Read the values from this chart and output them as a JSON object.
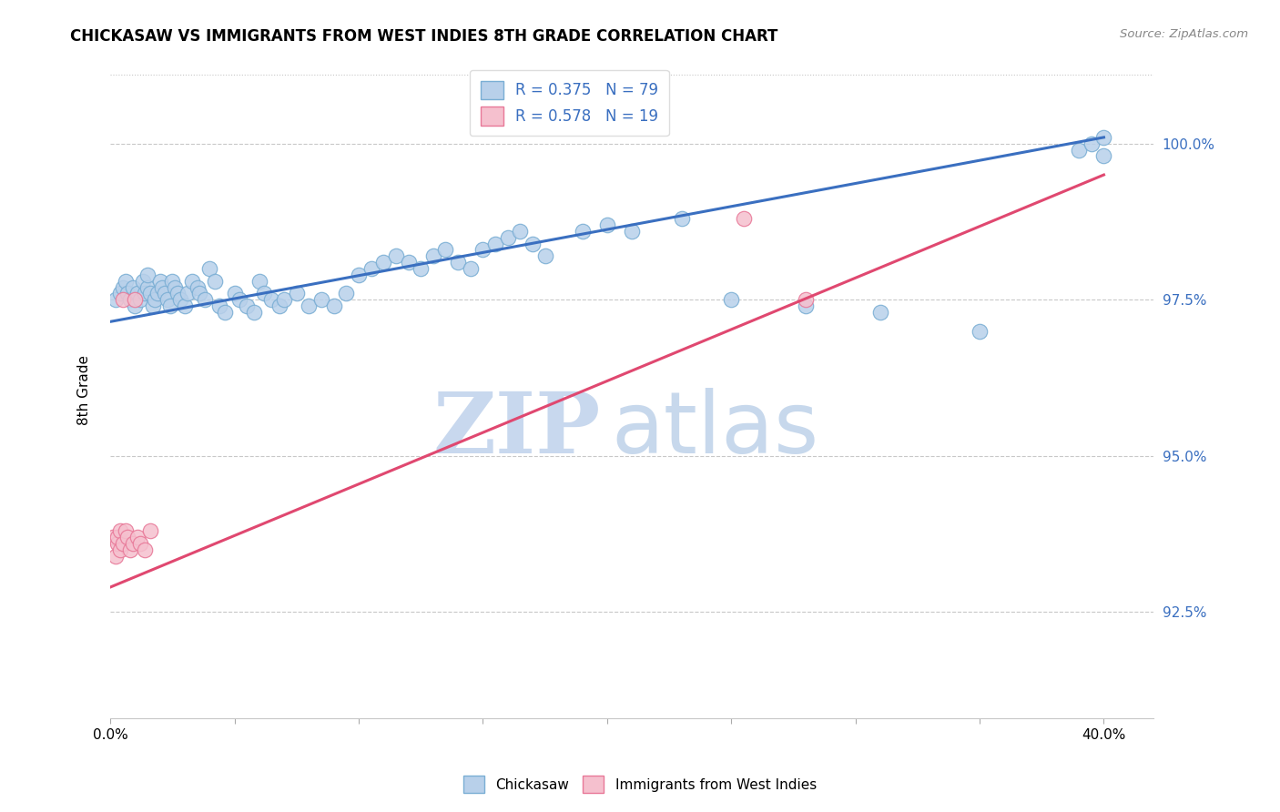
{
  "title": "CHICKASAW VS IMMIGRANTS FROM WEST INDIES 8TH GRADE CORRELATION CHART",
  "source": "Source: ZipAtlas.com",
  "ylabel": "8th Grade",
  "xlim": [
    0.0,
    0.42
  ],
  "ylim": [
    0.908,
    1.013
  ],
  "y_ticks": [
    0.925,
    0.95,
    0.975,
    1.0
  ],
  "y_tick_labels": [
    "92.5%",
    "95.0%",
    "97.5%",
    "100.0%"
  ],
  "x_ticks": [
    0.0,
    0.05,
    0.1,
    0.15,
    0.2,
    0.25,
    0.3,
    0.35,
    0.4
  ],
  "x_tick_labels": [
    "0.0%",
    "",
    "",
    "",
    "",
    "",
    "",
    "",
    "40.0%"
  ],
  "blue_R": 0.375,
  "blue_N": 79,
  "pink_R": 0.578,
  "pink_N": 19,
  "blue_color": "#b8d0ea",
  "blue_edge": "#7aaed4",
  "pink_color": "#f5c0ce",
  "pink_edge": "#e87898",
  "blue_line_color": "#3a6fc0",
  "pink_line_color": "#e04870",
  "legend_blue_label": "Chickasaw",
  "legend_pink_label": "Immigrants from West Indies",
  "watermark_zip": "ZIP",
  "watermark_atlas": "atlas",
  "blue_x": [
    0.002,
    0.004,
    0.005,
    0.006,
    0.007,
    0.008,
    0.009,
    0.01,
    0.011,
    0.012,
    0.013,
    0.014,
    0.015,
    0.015,
    0.016,
    0.017,
    0.018,
    0.019,
    0.02,
    0.021,
    0.022,
    0.023,
    0.024,
    0.025,
    0.026,
    0.027,
    0.028,
    0.03,
    0.031,
    0.033,
    0.035,
    0.036,
    0.038,
    0.04,
    0.042,
    0.044,
    0.046,
    0.05,
    0.052,
    0.055,
    0.058,
    0.06,
    0.062,
    0.065,
    0.068,
    0.07,
    0.075,
    0.08,
    0.085,
    0.09,
    0.095,
    0.1,
    0.105,
    0.11,
    0.115,
    0.12,
    0.125,
    0.13,
    0.135,
    0.14,
    0.145,
    0.15,
    0.155,
    0.16,
    0.165,
    0.17,
    0.175,
    0.19,
    0.2,
    0.21,
    0.23,
    0.25,
    0.28,
    0.31,
    0.35,
    0.39,
    0.395,
    0.4,
    0.4
  ],
  "blue_y": [
    0.975,
    0.976,
    0.977,
    0.978,
    0.976,
    0.975,
    0.977,
    0.974,
    0.976,
    0.975,
    0.978,
    0.976,
    0.977,
    0.979,
    0.976,
    0.974,
    0.975,
    0.976,
    0.978,
    0.977,
    0.976,
    0.975,
    0.974,
    0.978,
    0.977,
    0.976,
    0.975,
    0.974,
    0.976,
    0.978,
    0.977,
    0.976,
    0.975,
    0.98,
    0.978,
    0.974,
    0.973,
    0.976,
    0.975,
    0.974,
    0.973,
    0.978,
    0.976,
    0.975,
    0.974,
    0.975,
    0.976,
    0.974,
    0.975,
    0.974,
    0.976,
    0.979,
    0.98,
    0.981,
    0.982,
    0.981,
    0.98,
    0.982,
    0.983,
    0.981,
    0.98,
    0.983,
    0.984,
    0.985,
    0.986,
    0.984,
    0.982,
    0.986,
    0.987,
    0.986,
    0.988,
    0.975,
    0.974,
    0.973,
    0.97,
    0.999,
    1.0,
    1.001,
    0.998
  ],
  "pink_x": [
    0.001,
    0.002,
    0.003,
    0.003,
    0.004,
    0.004,
    0.005,
    0.005,
    0.006,
    0.007,
    0.008,
    0.009,
    0.01,
    0.011,
    0.012,
    0.014,
    0.016,
    0.255,
    0.28
  ],
  "pink_y": [
    0.937,
    0.934,
    0.936,
    0.937,
    0.935,
    0.938,
    0.936,
    0.975,
    0.938,
    0.937,
    0.935,
    0.936,
    0.975,
    0.937,
    0.936,
    0.935,
    0.938,
    0.988,
    0.975
  ],
  "blue_line_x0": 0.0,
  "blue_line_y0": 0.9715,
  "blue_line_x1": 0.4,
  "blue_line_y1": 1.001,
  "pink_line_x0": 0.0,
  "pink_line_y0": 0.929,
  "pink_line_x1": 0.4,
  "pink_line_y1": 0.995
}
